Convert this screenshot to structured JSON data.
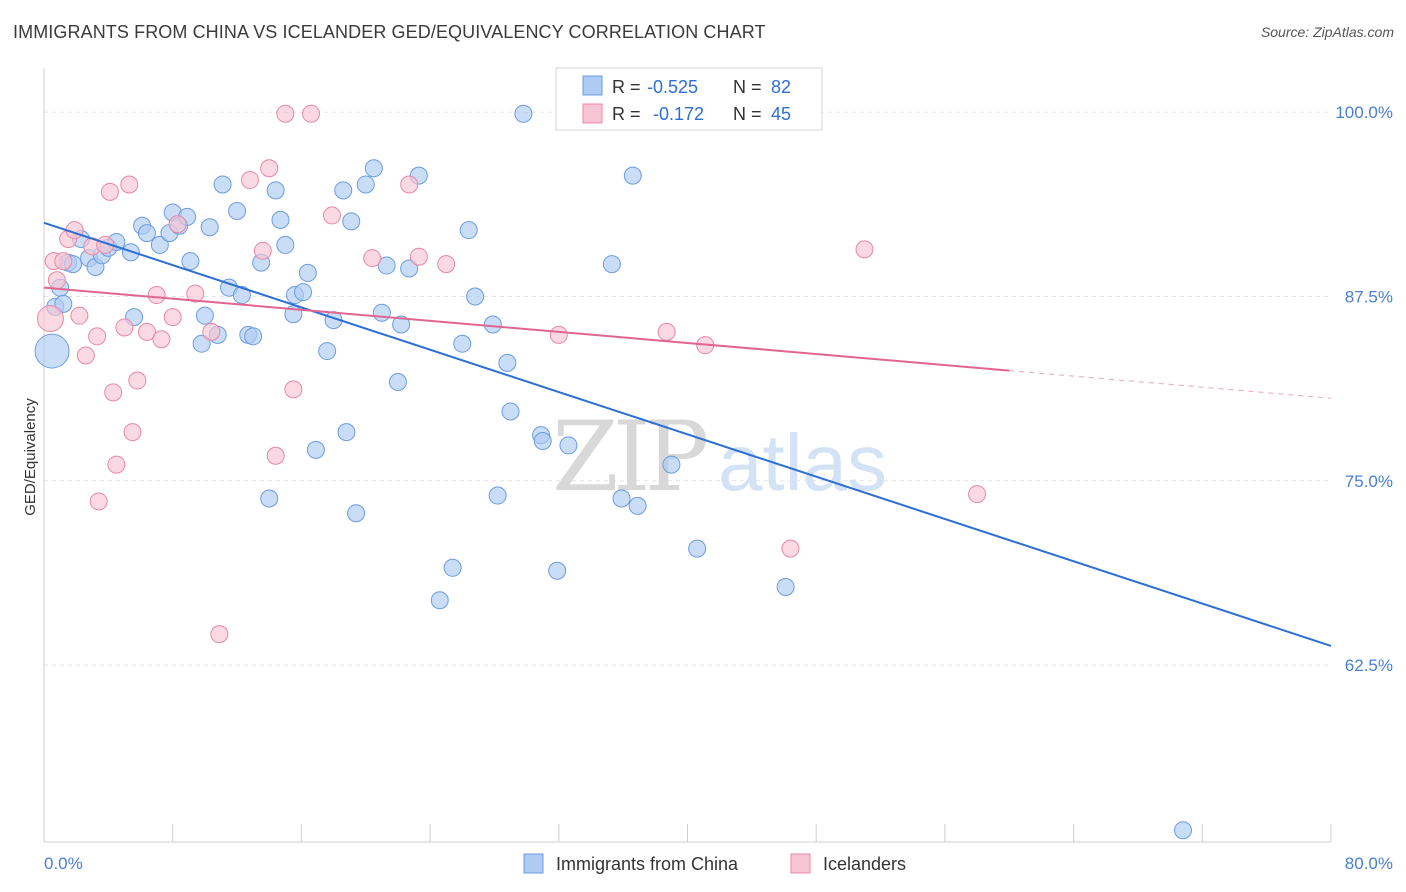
{
  "chart_data": {
    "type": "scatter",
    "title": "IMMIGRANTS FROM CHINA VS ICELANDER GED/EQUIVALENCY CORRELATION CHART",
    "source": "Source: ZipAtlas.com",
    "ylabel": "GED/Equivalency",
    "xlabel": "",
    "xlim": [
      0,
      80
    ],
    "ylim": [
      50.5,
      103
    ],
    "x_tick_labels": [
      "0.0%",
      "80.0%"
    ],
    "y_ticks": [
      100,
      87.5,
      75,
      62.5
    ],
    "y_tick_labels": [
      "100.0%",
      "87.5%",
      "75.0%",
      "62.5%"
    ],
    "grid": true,
    "legend_position": "bottom-center",
    "watermark": "ZIPatlas",
    "stats": [
      {
        "r_label": "R =",
        "r_value": "-0.525",
        "n_label": "N =",
        "n_value": "82"
      },
      {
        "r_label": "R =",
        "r_value": "-0.172",
        "n_label": "N =",
        "n_value": "45"
      }
    ],
    "series": [
      {
        "name": "Immigrants from China",
        "fill": "#aecbf3",
        "stroke": "#6b9de0",
        "trend_color": "#2d6fd4",
        "trend": {
          "x0": 0,
          "y0": 92.5,
          "x1": 80,
          "y1": 63.8,
          "solid_to": 80
        },
        "points": [
          [
            0.5,
            83.8,
            3
          ],
          [
            0.7,
            86.8,
            1
          ],
          [
            1.0,
            88.1,
            1
          ],
          [
            1.2,
            87.0,
            1
          ],
          [
            1.5,
            89.8,
            1
          ],
          [
            1.8,
            89.7,
            1
          ],
          [
            2.3,
            91.4,
            1
          ],
          [
            2.8,
            90.1,
            1
          ],
          [
            3.2,
            89.5,
            1
          ],
          [
            3.6,
            90.3,
            1
          ],
          [
            4.0,
            90.8,
            1
          ],
          [
            4.5,
            91.2,
            1
          ],
          [
            5.4,
            90.5,
            1
          ],
          [
            5.6,
            86.1,
            1
          ],
          [
            6.1,
            92.3,
            1
          ],
          [
            6.4,
            91.8,
            1
          ],
          [
            7.2,
            91.0,
            1
          ],
          [
            7.8,
            91.8,
            1
          ],
          [
            8.0,
            93.2,
            1
          ],
          [
            8.4,
            92.3,
            1
          ],
          [
            8.9,
            92.9,
            1
          ],
          [
            9.1,
            89.9,
            1
          ],
          [
            9.8,
            84.3,
            1
          ],
          [
            10.0,
            86.2,
            1
          ],
          [
            10.3,
            92.2,
            1
          ],
          [
            10.8,
            84.9,
            1
          ],
          [
            11.1,
            95.1,
            1
          ],
          [
            11.5,
            88.1,
            1
          ],
          [
            12.0,
            93.3,
            1
          ],
          [
            12.3,
            87.6,
            1
          ],
          [
            12.7,
            84.9,
            1
          ],
          [
            13.0,
            84.8,
            1
          ],
          [
            13.5,
            89.8,
            1
          ],
          [
            14.0,
            73.8,
            1
          ],
          [
            14.4,
            94.7,
            1
          ],
          [
            14.7,
            92.7,
            1
          ],
          [
            15.0,
            91.0,
            1
          ],
          [
            15.5,
            86.3,
            1
          ],
          [
            15.6,
            87.6,
            1
          ],
          [
            16.1,
            87.8,
            1
          ],
          [
            16.4,
            89.1,
            1
          ],
          [
            16.9,
            77.1,
            1
          ],
          [
            17.6,
            83.8,
            1
          ],
          [
            18.0,
            85.9,
            1
          ],
          [
            18.6,
            94.7,
            1
          ],
          [
            18.8,
            78.3,
            1
          ],
          [
            19.1,
            92.6,
            1
          ],
          [
            19.4,
            72.8,
            1
          ],
          [
            20.0,
            95.1,
            1
          ],
          [
            20.5,
            96.2,
            1
          ],
          [
            21.0,
            86.4,
            1
          ],
          [
            21.3,
            89.6,
            1
          ],
          [
            22.0,
            81.7,
            1
          ],
          [
            22.2,
            85.6,
            1
          ],
          [
            22.7,
            89.4,
            1
          ],
          [
            23.3,
            95.7,
            1
          ],
          [
            24.6,
            66.9,
            1
          ],
          [
            25.4,
            69.1,
            1
          ],
          [
            26.0,
            84.3,
            1
          ],
          [
            26.4,
            92.0,
            1
          ],
          [
            26.8,
            87.5,
            1
          ],
          [
            27.9,
            85.6,
            1
          ],
          [
            28.2,
            74.0,
            1
          ],
          [
            28.8,
            83.0,
            1
          ],
          [
            29.0,
            79.7,
            1
          ],
          [
            29.8,
            99.9,
            1
          ],
          [
            30.9,
            78.1,
            1
          ],
          [
            31.0,
            77.7,
            1
          ],
          [
            31.9,
            68.9,
            1
          ],
          [
            32.6,
            77.4,
            1
          ],
          [
            33.4,
            99.9,
            1
          ],
          [
            35.3,
            89.7,
            1
          ],
          [
            35.9,
            73.8,
            1
          ],
          [
            36.6,
            95.7,
            1
          ],
          [
            36.9,
            73.3,
            1
          ],
          [
            39.0,
            76.1,
            1
          ],
          [
            40.6,
            70.4,
            1
          ],
          [
            46.1,
            67.8,
            1
          ],
          [
            70.8,
            51.3,
            1
          ]
        ]
      },
      {
        "name": "Icelanders",
        "fill": "#f7c4d3",
        "stroke": "#e888a6",
        "trend_color": "#e06590",
        "trend": {
          "x0": 0,
          "y0": 88.1,
          "x1": 80,
          "y1": 80.6,
          "solid_to": 60
        },
        "points": [
          [
            0.4,
            86.0,
            2
          ],
          [
            0.6,
            89.9,
            1
          ],
          [
            0.8,
            88.6,
            1
          ],
          [
            1.2,
            89.9,
            1
          ],
          [
            1.5,
            91.4,
            1
          ],
          [
            1.9,
            92.0,
            1
          ],
          [
            2.2,
            86.2,
            1
          ],
          [
            2.6,
            83.5,
            1
          ],
          [
            3.0,
            90.9,
            1
          ],
          [
            3.3,
            84.8,
            1
          ],
          [
            3.4,
            73.6,
            1
          ],
          [
            3.8,
            91.0,
            1
          ],
          [
            4.1,
            94.6,
            1
          ],
          [
            4.3,
            81.0,
            1
          ],
          [
            4.5,
            76.1,
            1
          ],
          [
            5.0,
            85.4,
            1
          ],
          [
            5.3,
            95.1,
            1
          ],
          [
            5.5,
            78.3,
            1
          ],
          [
            5.8,
            81.8,
            1
          ],
          [
            6.4,
            85.1,
            1
          ],
          [
            7.0,
            87.6,
            1
          ],
          [
            7.3,
            84.6,
            1
          ],
          [
            8.0,
            86.1,
            1
          ],
          [
            8.3,
            92.4,
            1
          ],
          [
            9.4,
            87.7,
            1
          ],
          [
            10.4,
            85.1,
            1
          ],
          [
            10.9,
            64.6,
            1
          ],
          [
            12.8,
            95.4,
            1
          ],
          [
            13.6,
            90.6,
            1
          ],
          [
            14.0,
            96.2,
            1
          ],
          [
            14.4,
            76.7,
            1
          ],
          [
            15.0,
            99.9,
            1
          ],
          [
            15.5,
            81.2,
            1
          ],
          [
            16.6,
            99.9,
            1
          ],
          [
            17.9,
            93.0,
            1
          ],
          [
            20.4,
            90.1,
            1
          ],
          [
            22.7,
            95.1,
            1
          ],
          [
            23.3,
            90.2,
            1
          ],
          [
            25.0,
            89.7,
            1
          ],
          [
            32.0,
            84.9,
            1
          ],
          [
            38.7,
            85.1,
            1
          ],
          [
            41.1,
            84.2,
            1
          ],
          [
            46.4,
            70.4,
            1
          ],
          [
            51.0,
            90.7,
            1
          ],
          [
            58.0,
            74.1,
            1
          ]
        ]
      }
    ]
  }
}
